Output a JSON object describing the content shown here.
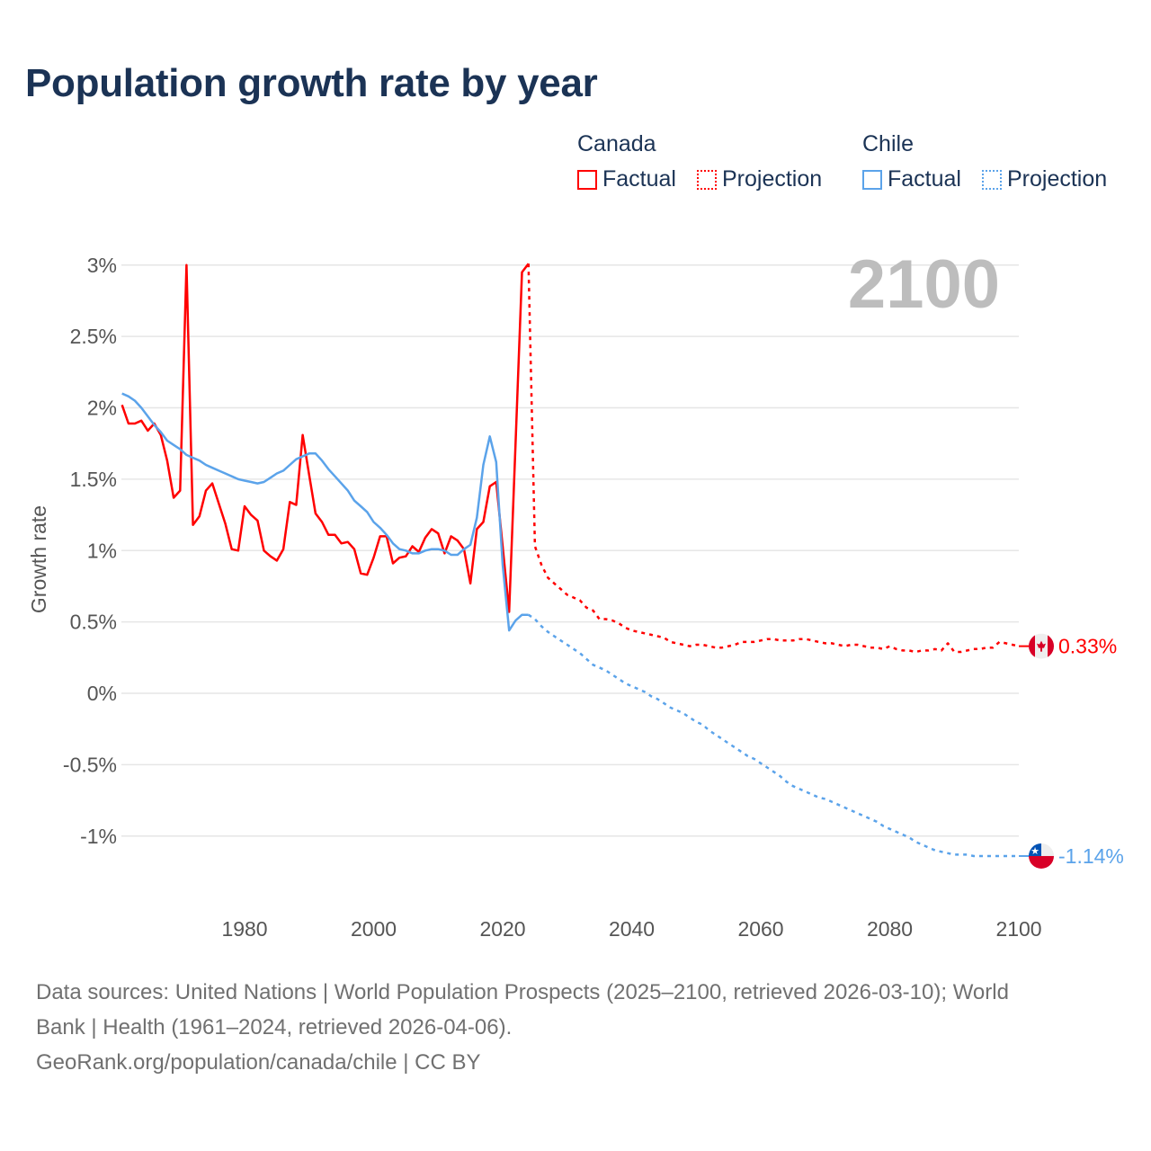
{
  "chart_data": {
    "type": "line",
    "title": "Population growth rate by year",
    "ylabel": "Growth rate",
    "xlabel": "",
    "current_year_label": "2100",
    "ylim": [
      -1.5,
      3.2
    ],
    "xlim": [
      1961,
      2100
    ],
    "yticks": [
      3,
      2.5,
      2,
      1.5,
      1,
      0.5,
      0,
      -0.5,
      -1
    ],
    "ytick_labels": [
      "3%",
      "2.5%",
      "2%",
      "1.5%",
      "1%",
      "0.5%",
      "0%",
      "-0.5%",
      "-1%"
    ],
    "xticks": [
      1980,
      2000,
      2020,
      2040,
      2060,
      2080,
      2100
    ],
    "xtick_labels": [
      "1980",
      "2000",
      "2020",
      "2040",
      "2060",
      "2080",
      "2100"
    ],
    "grid": true,
    "legend": {
      "placement": "top-right",
      "groups": [
        {
          "name": "Canada",
          "factual": "Factual",
          "projection": "Projection",
          "color": "#ff0000"
        },
        {
          "name": "Chile",
          "factual": "Factual",
          "projection": "Projection",
          "color": "#5ba3ea"
        }
      ]
    },
    "series": [
      {
        "name": "Canada",
        "color": "#ff0000",
        "end_label": "0.33%",
        "flag": "canada-flag",
        "factual_start": 1961,
        "factual": [
          2.02,
          1.89,
          1.89,
          1.91,
          1.84,
          1.89,
          1.81,
          1.63,
          1.37,
          1.42,
          3.0,
          1.18,
          1.24,
          1.42,
          1.47,
          1.33,
          1.19,
          1.01,
          1.0,
          1.31,
          1.25,
          1.21,
          1.0,
          0.96,
          0.93,
          1.01,
          1.34,
          1.32,
          1.81,
          1.53,
          1.26,
          1.2,
          1.11,
          1.11,
          1.05,
          1.06,
          1.01,
          0.84,
          0.83,
          0.95,
          1.1,
          1.1,
          0.91,
          0.95,
          0.96,
          1.03,
          0.99,
          1.09,
          1.15,
          1.12,
          0.98,
          1.1,
          1.07,
          1.01,
          0.77,
          1.15,
          1.2,
          1.45,
          1.48,
          1.03,
          0.57,
          1.76,
          2.95,
          3.01
        ],
        "projection_start": 2025,
        "projection": [
          1.03,
          0.9,
          0.81,
          0.77,
          0.73,
          0.69,
          0.67,
          0.65,
          0.6,
          0.58,
          0.52,
          0.52,
          0.51,
          0.49,
          0.46,
          0.44,
          0.43,
          0.42,
          0.41,
          0.4,
          0.39,
          0.36,
          0.35,
          0.34,
          0.33,
          0.34,
          0.34,
          0.33,
          0.32,
          0.32,
          0.33,
          0.34,
          0.36,
          0.36,
          0.36,
          0.37,
          0.38,
          0.38,
          0.37,
          0.37,
          0.37,
          0.38,
          0.38,
          0.37,
          0.36,
          0.35,
          0.35,
          0.34,
          0.33,
          0.34,
          0.34,
          0.33,
          0.32,
          0.32,
          0.31,
          0.33,
          0.31,
          0.3,
          0.3,
          0.29,
          0.3,
          0.3,
          0.31,
          0.3,
          0.35,
          0.29,
          0.29,
          0.3,
          0.31,
          0.31,
          0.32,
          0.32,
          0.36,
          0.35,
          0.34,
          0.33
        ]
      },
      {
        "name": "Chile",
        "color": "#5ba3ea",
        "end_label": "-1.14%",
        "flag": "chile-flag",
        "factual_start": 1961,
        "factual": [
          2.1,
          2.08,
          2.05,
          2.0,
          1.94,
          1.88,
          1.83,
          1.77,
          1.74,
          1.71,
          1.67,
          1.65,
          1.63,
          1.6,
          1.58,
          1.56,
          1.54,
          1.52,
          1.5,
          1.49,
          1.48,
          1.47,
          1.48,
          1.51,
          1.54,
          1.56,
          1.6,
          1.64,
          1.66,
          1.68,
          1.68,
          1.63,
          1.57,
          1.52,
          1.47,
          1.42,
          1.35,
          1.31,
          1.27,
          1.2,
          1.16,
          1.11,
          1.05,
          1.01,
          1.0,
          0.98,
          0.98,
          1.0,
          1.01,
          1.01,
          1.0,
          0.97,
          0.97,
          1.01,
          1.04,
          1.23,
          1.6,
          1.8,
          1.62,
          0.9,
          0.44,
          0.51,
          0.55,
          0.55
        ],
        "projection_start": 2025,
        "projection": [
          0.52,
          0.47,
          0.43,
          0.4,
          0.37,
          0.34,
          0.31,
          0.28,
          0.24,
          0.2,
          0.18,
          0.16,
          0.13,
          0.1,
          0.07,
          0.05,
          0.03,
          0.01,
          -0.02,
          -0.04,
          -0.07,
          -0.1,
          -0.12,
          -0.14,
          -0.17,
          -0.2,
          -0.22,
          -0.26,
          -0.29,
          -0.32,
          -0.35,
          -0.38,
          -0.41,
          -0.44,
          -0.46,
          -0.49,
          -0.52,
          -0.55,
          -0.58,
          -0.62,
          -0.65,
          -0.67,
          -0.69,
          -0.71,
          -0.73,
          -0.74,
          -0.76,
          -0.78,
          -0.8,
          -0.82,
          -0.84,
          -0.86,
          -0.88,
          -0.9,
          -0.93,
          -0.95,
          -0.97,
          -0.99,
          -1.01,
          -1.04,
          -1.06,
          -1.08,
          -1.1,
          -1.11,
          -1.12,
          -1.13,
          -1.13,
          -1.13,
          -1.14,
          -1.14,
          -1.14,
          -1.14,
          -1.14,
          -1.14,
          -1.14,
          -1.14
        ]
      }
    ]
  },
  "footer": {
    "line1": "Data sources: United Nations | World Population Prospects (2025–2100, retrieved 2026-03-10); World",
    "line2": "Bank | Health (1961–2024, retrieved 2026-04-06).",
    "line3": "GeoRank.org/population/canada/chile | CC BY"
  }
}
